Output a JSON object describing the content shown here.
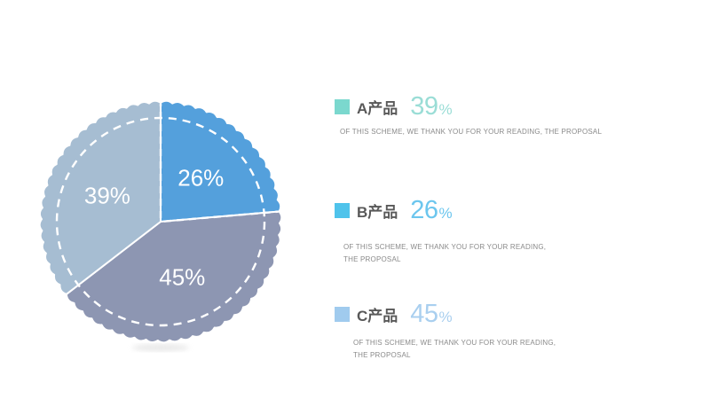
{
  "page": {
    "background": "#FFFFFF"
  },
  "chart_data": {
    "type": "pie",
    "title": "",
    "slices": [
      {
        "label": "B产品",
        "value": 26,
        "color": "#54A0DC"
      },
      {
        "label": "C产品",
        "value": 45,
        "color": "#8D96B2"
      },
      {
        "label": "A产品",
        "value": 39,
        "color": "#A6BDD2"
      }
    ],
    "value_suffix": "%",
    "start_angle_deg": 0,
    "direction": "clockwise",
    "slice_label_color": "#FFFFFF",
    "layout_hints": {
      "scalloped_edge": true,
      "dashed_inner_circle": true,
      "dashed_radial_lines_on_first_slice": true,
      "legend_position": "right"
    }
  },
  "legend": {
    "items": [
      {
        "label": "A产品",
        "value": "39",
        "unit": "%",
        "chip_color": "#7BD8CE",
        "value_color": "#9ADDD6",
        "description": "OF THIS SCHEME, WE THANK YOU FOR YOUR READING, THE PROPOSAL"
      },
      {
        "label": "B产品",
        "value": "26",
        "unit": "%",
        "chip_color": "#4FC3EB",
        "value_color": "#6CC6EE",
        "description": "OF THIS SCHEME, WE THANK YOU FOR YOUR READING, THE PROPOSAL"
      },
      {
        "label": "C产品",
        "value": "45",
        "unit": "%",
        "chip_color": "#A0CBEE",
        "value_color": "#A9CFEF",
        "description": "OF THIS SCHEME, WE THANK YOU FOR YOUR READING, THE PROPOSAL"
      }
    ]
  }
}
